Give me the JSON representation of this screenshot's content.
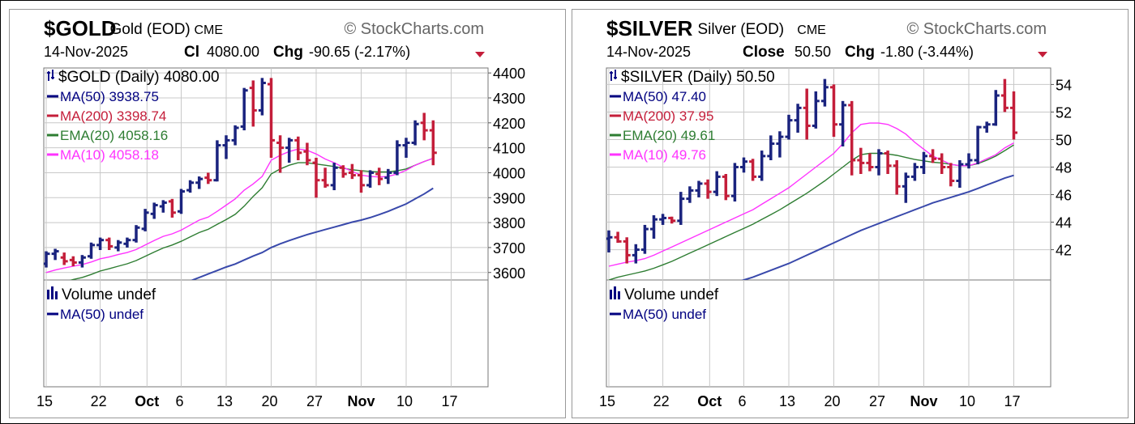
{
  "colors": {
    "up": "#1a237e",
    "down": "#c41e3a",
    "ma50": "#3949ab",
    "ma200": "#c41e3a",
    "ema20": "#2e7d32",
    "ma10": "#ff33ff",
    "label_blue": "#000080",
    "grid": "#c8c8c8",
    "border": "#777777"
  },
  "x_tick_labels": [
    {
      "label": "15",
      "bold": false
    },
    {
      "label": "22",
      "bold": false
    },
    {
      "label": "Oct",
      "bold": true
    },
    {
      "label": "6",
      "bold": false
    },
    {
      "label": "13",
      "bold": false
    },
    {
      "label": "20",
      "bold": false
    },
    {
      "label": "27",
      "bold": false
    },
    {
      "label": "Nov",
      "bold": true
    },
    {
      "label": "10",
      "bold": false
    },
    {
      "label": "17",
      "bold": false
    }
  ],
  "panels": [
    {
      "id": "gold",
      "symbol": "$GOLD",
      "name": "Gold (EOD)",
      "exchange": "CME",
      "brand": "© StockCharts.com",
      "date": "14-Nov-2025",
      "close_label": "Cl",
      "close_value": "4080.00",
      "chg_label": "Chg",
      "chg_value": "-90.65 (-2.17%)",
      "legend": {
        "main": "$GOLD (Daily) 4080.00",
        "ma50": "MA(50) 3938.75",
        "ma200": "MA(200) 3398.74",
        "ema20": "EMA(20) 4058.16",
        "ma10": "MA(10) 4058.18"
      },
      "volume_legend": {
        "volume": "Volume undef",
        "ma50": "MA(50) undef"
      },
      "chart_data": {
        "type": "ohlc",
        "y_ticks": [
          3600,
          3700,
          3800,
          3900,
          4000,
          4100,
          4200,
          4300,
          4400
        ],
        "ylim": [
          3570,
          4420
        ],
        "bars": [
          {
            "o": 3635,
            "h": 3685,
            "l": 3620,
            "c": 3675
          },
          {
            "o": 3675,
            "h": 3695,
            "l": 3650,
            "c": 3685
          },
          {
            "o": 3660,
            "h": 3680,
            "l": 3630,
            "c": 3645
          },
          {
            "o": 3650,
            "h": 3665,
            "l": 3625,
            "c": 3640
          },
          {
            "o": 3640,
            "h": 3670,
            "l": 3620,
            "c": 3660
          },
          {
            "o": 3665,
            "h": 3720,
            "l": 3655,
            "c": 3710
          },
          {
            "o": 3710,
            "h": 3740,
            "l": 3690,
            "c": 3730
          },
          {
            "o": 3730,
            "h": 3740,
            "l": 3690,
            "c": 3705
          },
          {
            "o": 3700,
            "h": 3730,
            "l": 3685,
            "c": 3720
          },
          {
            "o": 3715,
            "h": 3740,
            "l": 3700,
            "c": 3730
          },
          {
            "o": 3730,
            "h": 3790,
            "l": 3720,
            "c": 3780
          },
          {
            "o": 3775,
            "h": 3855,
            "l": 3765,
            "c": 3840
          },
          {
            "o": 3835,
            "h": 3880,
            "l": 3815,
            "c": 3870
          },
          {
            "o": 3865,
            "h": 3890,
            "l": 3840,
            "c": 3880
          },
          {
            "o": 3885,
            "h": 3895,
            "l": 3820,
            "c": 3840
          },
          {
            "o": 3845,
            "h": 3935,
            "l": 3835,
            "c": 3925
          },
          {
            "o": 3930,
            "h": 3970,
            "l": 3920,
            "c": 3960
          },
          {
            "o": 3960,
            "h": 3985,
            "l": 3935,
            "c": 3975
          },
          {
            "o": 3980,
            "h": 4000,
            "l": 3955,
            "c": 3970
          },
          {
            "o": 3970,
            "h": 4130,
            "l": 3965,
            "c": 4110
          },
          {
            "o": 4110,
            "h": 4150,
            "l": 4055,
            "c": 4130
          },
          {
            "o": 4130,
            "h": 4190,
            "l": 4110,
            "c": 4180
          },
          {
            "o": 4185,
            "h": 4340,
            "l": 4170,
            "c": 4330
          },
          {
            "o": 4340,
            "h": 4370,
            "l": 4185,
            "c": 4250
          },
          {
            "o": 4250,
            "h": 4380,
            "l": 4230,
            "c": 4360
          },
          {
            "o": 4355,
            "h": 4380,
            "l": 4060,
            "c": 4130
          },
          {
            "o": 4120,
            "h": 4150,
            "l": 4000,
            "c": 4100
          },
          {
            "o": 4100,
            "h": 4140,
            "l": 4040,
            "c": 4130
          },
          {
            "o": 4130,
            "h": 4145,
            "l": 4050,
            "c": 4080
          },
          {
            "o": 4085,
            "h": 4120,
            "l": 4030,
            "c": 4050
          },
          {
            "o": 4040,
            "h": 4060,
            "l": 3900,
            "c": 3970
          },
          {
            "o": 3970,
            "h": 4020,
            "l": 3940,
            "c": 3950
          },
          {
            "o": 3950,
            "h": 4040,
            "l": 3930,
            "c": 4020
          },
          {
            "o": 4020,
            "h": 4030,
            "l": 3980,
            "c": 3995
          },
          {
            "o": 4000,
            "h": 4035,
            "l": 3975,
            "c": 3990
          },
          {
            "o": 3990,
            "h": 4010,
            "l": 3920,
            "c": 3950
          },
          {
            "o": 3950,
            "h": 4010,
            "l": 3940,
            "c": 4000
          },
          {
            "o": 3995,
            "h": 4020,
            "l": 3950,
            "c": 3975
          },
          {
            "o": 3980,
            "h": 4015,
            "l": 3955,
            "c": 4000
          },
          {
            "o": 4000,
            "h": 4130,
            "l": 3990,
            "c": 4110
          },
          {
            "o": 4110,
            "h": 4140,
            "l": 4060,
            "c": 4120
          },
          {
            "o": 4120,
            "h": 4210,
            "l": 4110,
            "c": 4195
          },
          {
            "o": 4200,
            "h": 4240,
            "l": 4130,
            "c": 4170
          },
          {
            "o": 4170,
            "h": 4210,
            "l": 4030,
            "c": 4080
          }
        ],
        "ma10": [
          3600,
          3610,
          3618,
          3625,
          3632,
          3642,
          3655,
          3662,
          3672,
          3680,
          3692,
          3710,
          3728,
          3745,
          3755,
          3770,
          3790,
          3810,
          3822,
          3845,
          3870,
          3895,
          3930,
          3955,
          3985,
          4050,
          4070,
          4085,
          4095,
          4090,
          4075,
          4055,
          4040,
          4022,
          4005,
          3990,
          3985,
          3983,
          3985,
          3995,
          4010,
          4030,
          4045,
          4058
        ],
        "ema20": [
          3535,
          3550,
          3562,
          3572,
          3580,
          3592,
          3606,
          3615,
          3625,
          3635,
          3648,
          3665,
          3682,
          3698,
          3710,
          3725,
          3743,
          3760,
          3773,
          3793,
          3812,
          3833,
          3866,
          3905,
          3940,
          3995,
          4015,
          4030,
          4040,
          4040,
          4035,
          4030,
          4025,
          4018,
          4012,
          4008,
          4005,
          4003,
          4003,
          4008,
          4015,
          4030,
          4045,
          4058
        ],
        "ma50": [
          3420,
          3428,
          3436,
          3444,
          3452,
          3460,
          3468,
          3476,
          3484,
          3492,
          3500,
          3510,
          3520,
          3530,
          3540,
          3552,
          3566,
          3580,
          3594,
          3608,
          3622,
          3634,
          3650,
          3666,
          3680,
          3700,
          3715,
          3728,
          3740,
          3752,
          3762,
          3772,
          3782,
          3792,
          3802,
          3810,
          3820,
          3832,
          3845,
          3860,
          3875,
          3895,
          3915,
          3938
        ],
        "ma200_last": 3398.74
      }
    },
    {
      "id": "silver",
      "symbol": "$SILVER",
      "name": "Silver (EOD)",
      "exchange": "CME",
      "brand": "© StockCharts.com",
      "date": "14-Nov-2025",
      "close_label": "Close",
      "close_value": "50.50",
      "chg_label": "Chg",
      "chg_value": "-1.80 (-3.44%)",
      "legend": {
        "main": "$SILVER (Daily) 50.50",
        "ma50": "MA(50) 47.40",
        "ma200": "MA(200) 37.95",
        "ema20": "EMA(20) 49.61",
        "ma10": "MA(10) 49.76"
      },
      "volume_legend": {
        "volume": "Volume undef",
        "ma50": "MA(50) undef"
      },
      "chart_data": {
        "type": "ohlc",
        "y_ticks": [
          42,
          44,
          46,
          48,
          50,
          52,
          54
        ],
        "ylim": [
          39.8,
          55.2
        ],
        "bars": [
          {
            "o": 42.8,
            "h": 43.4,
            "l": 41.8,
            "c": 42.9
          },
          {
            "o": 42.9,
            "h": 43.3,
            "l": 42.5,
            "c": 42.6
          },
          {
            "o": 42.6,
            "h": 42.9,
            "l": 41.0,
            "c": 41.6
          },
          {
            "o": 41.6,
            "h": 42.4,
            "l": 41.0,
            "c": 42.0
          },
          {
            "o": 42.0,
            "h": 43.8,
            "l": 41.7,
            "c": 43.5
          },
          {
            "o": 43.5,
            "h": 44.5,
            "l": 42.8,
            "c": 44.2
          },
          {
            "o": 44.2,
            "h": 44.6,
            "l": 43.8,
            "c": 44.3
          },
          {
            "o": 44.3,
            "h": 44.4,
            "l": 43.9,
            "c": 44.1
          },
          {
            "o": 44.1,
            "h": 46.2,
            "l": 43.8,
            "c": 45.7
          },
          {
            "o": 45.7,
            "h": 46.6,
            "l": 45.4,
            "c": 46.3
          },
          {
            "o": 46.3,
            "h": 47.0,
            "l": 45.8,
            "c": 46.8
          },
          {
            "o": 46.8,
            "h": 47.1,
            "l": 45.7,
            "c": 46.2
          },
          {
            "o": 46.2,
            "h": 47.7,
            "l": 45.9,
            "c": 47.3
          },
          {
            "o": 47.3,
            "h": 47.5,
            "l": 45.6,
            "c": 45.9
          },
          {
            "o": 45.9,
            "h": 48.3,
            "l": 45.5,
            "c": 48.0
          },
          {
            "o": 48.0,
            "h": 48.7,
            "l": 47.6,
            "c": 48.4
          },
          {
            "o": 48.4,
            "h": 48.6,
            "l": 47.0,
            "c": 47.3
          },
          {
            "o": 47.3,
            "h": 49.2,
            "l": 47.0,
            "c": 48.8
          },
          {
            "o": 48.8,
            "h": 50.3,
            "l": 48.5,
            "c": 49.7
          },
          {
            "o": 49.7,
            "h": 50.6,
            "l": 48.7,
            "c": 50.2
          },
          {
            "o": 50.2,
            "h": 51.8,
            "l": 50.0,
            "c": 51.4
          },
          {
            "o": 51.4,
            "h": 52.6,
            "l": 50.5,
            "c": 52.3
          },
          {
            "o": 52.3,
            "h": 53.7,
            "l": 50.0,
            "c": 51.0
          },
          {
            "o": 51.0,
            "h": 53.5,
            "l": 50.8,
            "c": 52.8
          },
          {
            "o": 52.8,
            "h": 54.4,
            "l": 52.4,
            "c": 53.8
          },
          {
            "o": 53.8,
            "h": 54.0,
            "l": 50.2,
            "c": 51.1
          },
          {
            "o": 51.1,
            "h": 52.8,
            "l": 49.5,
            "c": 52.5
          },
          {
            "o": 52.5,
            "h": 52.8,
            "l": 47.4,
            "c": 48.5
          },
          {
            "o": 48.5,
            "h": 49.4,
            "l": 47.5,
            "c": 48.3
          },
          {
            "o": 48.3,
            "h": 49.0,
            "l": 47.7,
            "c": 48.0
          },
          {
            "o": 48.0,
            "h": 49.3,
            "l": 47.4,
            "c": 49.0
          },
          {
            "o": 49.0,
            "h": 49.2,
            "l": 47.5,
            "c": 48.1
          },
          {
            "o": 48.1,
            "h": 48.5,
            "l": 46.0,
            "c": 46.6
          },
          {
            "o": 46.6,
            "h": 47.6,
            "l": 45.4,
            "c": 47.3
          },
          {
            "o": 47.3,
            "h": 48.3,
            "l": 47.0,
            "c": 48.0
          },
          {
            "o": 48.0,
            "h": 49.1,
            "l": 47.5,
            "c": 48.8
          },
          {
            "o": 48.8,
            "h": 49.3,
            "l": 48.3,
            "c": 48.6
          },
          {
            "o": 48.6,
            "h": 49.0,
            "l": 47.5,
            "c": 48.0
          },
          {
            "o": 48.0,
            "h": 48.3,
            "l": 46.6,
            "c": 47.0
          },
          {
            "o": 47.0,
            "h": 48.5,
            "l": 46.5,
            "c": 48.2
          },
          {
            "o": 48.2,
            "h": 49.0,
            "l": 47.9,
            "c": 48.5
          },
          {
            "o": 48.5,
            "h": 51.0,
            "l": 48.2,
            "c": 50.9
          },
          {
            "o": 50.9,
            "h": 51.3,
            "l": 50.5,
            "c": 51.1
          },
          {
            "o": 51.1,
            "h": 53.6,
            "l": 51.0,
            "c": 53.2
          },
          {
            "o": 53.2,
            "h": 54.4,
            "l": 52.0,
            "c": 52.3
          },
          {
            "o": 52.3,
            "h": 53.5,
            "l": 50.0,
            "c": 50.5
          }
        ],
        "ma10": [
          40.8,
          40.95,
          41.1,
          41.2,
          41.35,
          41.6,
          41.9,
          42.2,
          42.5,
          42.8,
          43.1,
          43.4,
          43.7,
          44.0,
          44.3,
          44.6,
          44.9,
          45.3,
          45.7,
          46.1,
          46.5,
          47.0,
          47.5,
          48.0,
          48.5,
          49.0,
          49.7,
          50.5,
          51.1,
          51.2,
          51.2,
          51.1,
          50.8,
          50.4,
          49.8,
          49.3,
          48.8,
          48.5,
          48.2,
          48.1,
          48.1,
          48.3,
          48.6,
          48.9,
          49.4,
          49.76
        ],
        "ema20": [
          39.8,
          40.0,
          40.15,
          40.3,
          40.45,
          40.65,
          40.9,
          41.15,
          41.45,
          41.75,
          42.05,
          42.35,
          42.65,
          42.95,
          43.25,
          43.55,
          43.85,
          44.2,
          44.55,
          44.9,
          45.3,
          45.7,
          46.1,
          46.55,
          47.0,
          47.5,
          48.0,
          48.5,
          48.9,
          49.0,
          49.0,
          48.95,
          48.85,
          48.7,
          48.55,
          48.45,
          48.35,
          48.3,
          48.2,
          48.1,
          48.1,
          48.25,
          48.5,
          48.8,
          49.2,
          49.61
        ],
        "ma50": [
          36.8,
          37.0,
          37.2,
          37.4,
          37.6,
          37.8,
          38.0,
          38.2,
          38.4,
          38.6,
          38.8,
          39.0,
          39.2,
          39.4,
          39.6,
          39.8,
          40.0,
          40.25,
          40.5,
          40.75,
          41.0,
          41.3,
          41.6,
          41.9,
          42.2,
          42.5,
          42.8,
          43.1,
          43.4,
          43.65,
          43.9,
          44.15,
          44.4,
          44.65,
          44.9,
          45.15,
          45.4,
          45.6,
          45.8,
          46.0,
          46.2,
          46.45,
          46.7,
          46.95,
          47.2,
          47.4
        ],
        "ma200_last": 37.95
      }
    }
  ]
}
